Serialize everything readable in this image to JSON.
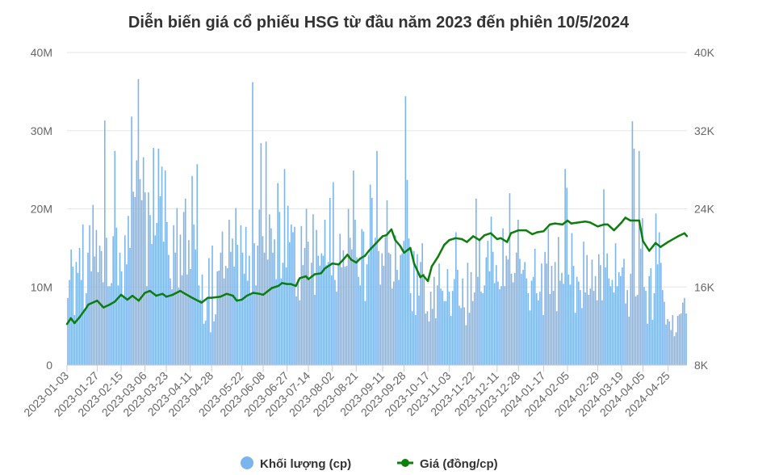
{
  "chart_data": {
    "type": "bar+line",
    "title": "Diễn biến giá cổ phiếu HSG từ đầu năm 2023 đến phiên 10/5/2024",
    "y_left": {
      "ticks": [
        "0",
        "10M",
        "20M",
        "30M",
        "40M"
      ],
      "min": 0,
      "max": 40000000
    },
    "y_right": {
      "ticks": [
        "8K",
        "16K",
        "24K",
        "32K",
        "40K"
      ],
      "min": 8000,
      "max": 40000
    },
    "x_ticks": [
      "2023-01-03",
      "2023-01-27",
      "2023-02-15",
      "2023-03-06",
      "2023-03-23",
      "2023-04-11",
      "2023-04-28",
      "2023-05-22",
      "2023-06-08",
      "2023-06-27",
      "2023-07-14",
      "2023-08-02",
      "2023-08-21",
      "2023-09-11",
      "2023-09-28",
      "2023-10-17",
      "2023-11-03",
      "2023-11-22",
      "2023-12-11",
      "2023-12-28",
      "2024-01-17",
      "2024-02-05",
      "2024-02-29",
      "2024-03-19",
      "2024-04-05",
      "2024-04-25"
    ],
    "legend": {
      "position": "bottom",
      "items": [
        {
          "label": "Khối lượng (cp)",
          "color": "#7cb5ec",
          "shape": "circle"
        },
        {
          "label": "Giá (đồng/cp)",
          "color": "#0d7d0d",
          "shape": "line"
        }
      ]
    },
    "colors": {
      "volume": "#7cb5ec",
      "price": "#0d7d0d",
      "grid": "#e6e6e6"
    },
    "volume_start_date": "2023-01-03",
    "volume": [
      8.6,
      10.9,
      14.8,
      12.6,
      6.4,
      13.2,
      11.8,
      15.0,
      10.9,
      18.0,
      7.2,
      9.2,
      14.4,
      17.9,
      12.0,
      20.5,
      13.9,
      17.3,
      11.9,
      15.3,
      14.6,
      10.6,
      31.3,
      16.3,
      10.1,
      10.1,
      10.5,
      16.5,
      27.4,
      17.6,
      10.2,
      14.4,
      12.0,
      8.9,
      16.6,
      12.9,
      19.1,
      15.0,
      31.8,
      22.2,
      21.5,
      26.2,
      36.6,
      23.8,
      21.1,
      26.6,
      22.1,
      10.1,
      22.1,
      19.2,
      15.5,
      27.8,
      16.6,
      18.2,
      27.7,
      21.6,
      25.4,
      15.8,
      24.9,
      18.3,
      14.1,
      11.1,
      9.7,
      17.9,
      14.4,
      20.1,
      9.9,
      16.7,
      11.5,
      19.6,
      21.3,
      11.6,
      16.0,
      12.3,
      24.2,
      18.0,
      14.8,
      25.7,
      10.2,
      8.4,
      11.6,
      5.3,
      5.7,
      8.7,
      13.7,
      4.2,
      15.3,
      5.6,
      6.5,
      12.0,
      12.1,
      14.4,
      17.1,
      11.1,
      12.7,
      12.4,
      18.6,
      14.5,
      16.2,
      12.6,
      20.1,
      15.4,
      8.2,
      17.9,
      14.4,
      11.7,
      17.7,
      10.8,
      14.0,
      9.0,
      36.2,
      15.6,
      10.2,
      15.3,
      19.9,
      28.4,
      16.5,
      14.4,
      28.6,
      13.5,
      19.3,
      17.5,
      14.4,
      16.1,
      11.0,
      23.3,
      19.6,
      11.1,
      13.1,
      25.1,
      12.5,
      20.4,
      15.7,
      18.0,
      17.0,
      17.7,
      8.8,
      11.0,
      8.3,
      17.8,
      12.8,
      15.0,
      20.0,
      15.8,
      10.9,
      13.1,
      19.3,
      9.0,
      17.3,
      14.0,
      12.7,
      14.3,
      14.0,
      18.6,
      12.8,
      13.2,
      21.4,
      11.5,
      23.4,
      10.9,
      9.4,
      13.0,
      16.8,
      12.5,
      14.7,
      12.6,
      12.7,
      20.0,
      16.3,
      14.8,
      24.9,
      18.6,
      13.8,
      11.3,
      10.2,
      17.4,
      17.1,
      8.2,
      12.9,
      14.1,
      23.1,
      21.4,
      15.3,
      16.3,
      27.4,
      14.6,
      10.3,
      14.3,
      12.7,
      16.4,
      21.1,
      14.4,
      14.2,
      9.8,
      10.7,
      16.6,
      12.2,
      10.9,
      14.1,
      14.3,
      15.9,
      34.4,
      23.7,
      16.2,
      9.2,
      6.9,
      14.6,
      6.4,
      14.2,
      8.9,
      13.2,
      15.6,
      11.7,
      6.6,
      6.9,
      5.6,
      9.4,
      7.2,
      11.3,
      6.0,
      10.2,
      13.0,
      9.8,
      9.5,
      8.2,
      8.2,
      12.3,
      9.4,
      6.3,
      9.5,
      11.0,
      17.0,
      12.2,
      7.6,
      7.3,
      11.1,
      7.4,
      5.1,
      13.1,
      6.7,
      11.9,
      8.2,
      9.3,
      21.3,
      11.3,
      16.2,
      9.4,
      9.2,
      10.2,
      13.8,
      15.9,
      12.0,
      19.0,
      14.5,
      10.5,
      12.8,
      10.7,
      9.7,
      10.1,
      17.5,
      10.1,
      14.0,
      13.5,
      22.0,
      11.7,
      10.6,
      11.8,
      14.4,
      18.6,
      13.6,
      11.7,
      12.2,
      13.2,
      11.1,
      9.2,
      7.0,
      10.8,
      11.3,
      14.9,
      9.2,
      8.3,
      9.4,
      13.0,
      6.4,
      14.5,
      13.0,
      17.5,
      9.1,
      12.7,
      9.5,
      13.2,
      6.9,
      16.4,
      10.8,
      11.8,
      10.4,
      25.1,
      22.7,
      11.6,
      10.3,
      16.9,
      12.7,
      6.7,
      11.3,
      10.7,
      9.6,
      7.3,
      15.8,
      9.3,
      14.1,
      9.0,
      9.8,
      13.5,
      9.5,
      11.4,
      8.3,
      14.2,
      12.8,
      8.3,
      22.5,
      12.5,
      14.3,
      11.1,
      10.1,
      10.9,
      9.3,
      15.6,
      10.1,
      11.9,
      11.4,
      12.5,
      13.6,
      7.9,
      9.6,
      6.2,
      11.7,
      31.2,
      27.7,
      8.8,
      9.0,
      27.4,
      14.9,
      18.8,
      10.0,
      9.5,
      5.3,
      11.4,
      12.4,
      5.8,
      9.2,
      19.4,
      12.9,
      17.0,
      13.1,
      9.6,
      8.1,
      5.2,
      5.9,
      5.6,
      4.5,
      6.4,
      3.7,
      4.2,
      6.3,
      6.5,
      6.6,
      8.0,
      8.6,
      6.6
    ],
    "price": [
      [
        "2023-01-03",
        12.2
      ],
      [
        "2023-01-06",
        12.8
      ],
      [
        "2023-01-09",
        12.3
      ],
      [
        "2023-01-13",
        12.9
      ],
      [
        "2023-01-18",
        13.8
      ],
      [
        "2023-01-20",
        14.2
      ],
      [
        "2023-01-27",
        14.6
      ],
      [
        "2023-02-01",
        13.9
      ],
      [
        "2023-02-06",
        14.2
      ],
      [
        "2023-02-10",
        14.5
      ],
      [
        "2023-02-15",
        15.2
      ],
      [
        "2023-02-20",
        14.7
      ],
      [
        "2023-02-24",
        15.1
      ],
      [
        "2023-03-01",
        14.6
      ],
      [
        "2023-03-06",
        15.4
      ],
      [
        "2023-03-10",
        15.6
      ],
      [
        "2023-03-15",
        15.1
      ],
      [
        "2023-03-20",
        15.3
      ],
      [
        "2023-03-23",
        15.0
      ],
      [
        "2023-03-28",
        15.2
      ],
      [
        "2023-04-03",
        15.6
      ],
      [
        "2023-04-07",
        15.3
      ],
      [
        "2023-04-11",
        15.0
      ],
      [
        "2023-04-14",
        14.8
      ],
      [
        "2023-04-20",
        14.4
      ],
      [
        "2023-04-25",
        14.9
      ],
      [
        "2023-04-28",
        14.9
      ],
      [
        "2023-05-05",
        15.0
      ],
      [
        "2023-05-10",
        15.3
      ],
      [
        "2023-05-15",
        15.1
      ],
      [
        "2023-05-18",
        14.6
      ],
      [
        "2023-05-22",
        14.7
      ],
      [
        "2023-05-26",
        15.1
      ],
      [
        "2023-05-31",
        15.4
      ],
      [
        "2023-06-05",
        15.3
      ],
      [
        "2023-06-08",
        15.2
      ],
      [
        "2023-06-12",
        15.6
      ],
      [
        "2023-06-15",
        15.9
      ],
      [
        "2023-06-20",
        16.1
      ],
      [
        "2023-06-23",
        16.4
      ],
      [
        "2023-06-27",
        16.3
      ],
      [
        "2023-06-30",
        16.3
      ],
      [
        "2023-07-04",
        16.1
      ],
      [
        "2023-07-07",
        16.9
      ],
      [
        "2023-07-12",
        17.1
      ],
      [
        "2023-07-14",
        16.8
      ],
      [
        "2023-07-19",
        17.3
      ],
      [
        "2023-07-24",
        17.4
      ],
      [
        "2023-07-27",
        17.9
      ],
      [
        "2023-08-02",
        18.4
      ],
      [
        "2023-08-07",
        18.3
      ],
      [
        "2023-08-10",
        18.7
      ],
      [
        "2023-08-14",
        19.3
      ],
      [
        "2023-08-17",
        18.8
      ],
      [
        "2023-08-21",
        18.5
      ],
      [
        "2023-08-24",
        18.9
      ],
      [
        "2023-08-28",
        19.2
      ],
      [
        "2023-08-31",
        19.7
      ],
      [
        "2023-09-06",
        20.5
      ],
      [
        "2023-09-11",
        21.2
      ],
      [
        "2023-09-14",
        21.3
      ],
      [
        "2023-09-18",
        21.9
      ],
      [
        "2023-09-21",
        20.8
      ],
      [
        "2023-09-25",
        20.2
      ],
      [
        "2023-09-28",
        19.5
      ],
      [
        "2023-10-03",
        20.0
      ],
      [
        "2023-10-06",
        18.4
      ],
      [
        "2023-10-11",
        17.0
      ],
      [
        "2023-10-13",
        17.2
      ],
      [
        "2023-10-17",
        16.6
      ],
      [
        "2023-10-20",
        18.1
      ],
      [
        "2023-10-25",
        19.1
      ],
      [
        "2023-10-30",
        20.3
      ],
      [
        "2023-11-03",
        20.8
      ],
      [
        "2023-11-08",
        21.0
      ],
      [
        "2023-11-13",
        20.9
      ],
      [
        "2023-11-17",
        20.6
      ],
      [
        "2023-11-22",
        21.2
      ],
      [
        "2023-11-27",
        20.8
      ],
      [
        "2023-12-01",
        21.3
      ],
      [
        "2023-12-06",
        21.5
      ],
      [
        "2023-12-11",
        20.9
      ],
      [
        "2023-12-14",
        21.0
      ],
      [
        "2023-12-19",
        20.6
      ],
      [
        "2023-12-22",
        21.5
      ],
      [
        "2023-12-28",
        21.8
      ],
      [
        "2024-01-03",
        21.8
      ],
      [
        "2024-01-08",
        21.4
      ],
      [
        "2024-01-12",
        21.6
      ],
      [
        "2024-01-17",
        21.7
      ],
      [
        "2024-01-22",
        22.4
      ],
      [
        "2024-01-26",
        22.5
      ],
      [
        "2024-02-01",
        22.4
      ],
      [
        "2024-02-05",
        22.8
      ],
      [
        "2024-02-08",
        22.5
      ],
      [
        "2024-02-19",
        22.7
      ],
      [
        "2024-02-23",
        22.6
      ],
      [
        "2024-02-29",
        22.2
      ],
      [
        "2024-03-05",
        22.4
      ],
      [
        "2024-03-08",
        22.4
      ],
      [
        "2024-03-13",
        21.8
      ],
      [
        "2024-03-19",
        22.6
      ],
      [
        "2024-03-22",
        23.1
      ],
      [
        "2024-03-26",
        22.8
      ],
      [
        "2024-03-29",
        22.8
      ],
      [
        "2024-04-02",
        22.8
      ],
      [
        "2024-04-05",
        20.7
      ],
      [
        "2024-04-10",
        19.7
      ],
      [
        "2024-04-15",
        20.5
      ],
      [
        "2024-04-19",
        20.1
      ],
      [
        "2024-04-25",
        20.6
      ],
      [
        "2024-05-03",
        21.2
      ],
      [
        "2024-05-08",
        21.5
      ],
      [
        "2024-05-10",
        21.2
      ]
    ]
  }
}
